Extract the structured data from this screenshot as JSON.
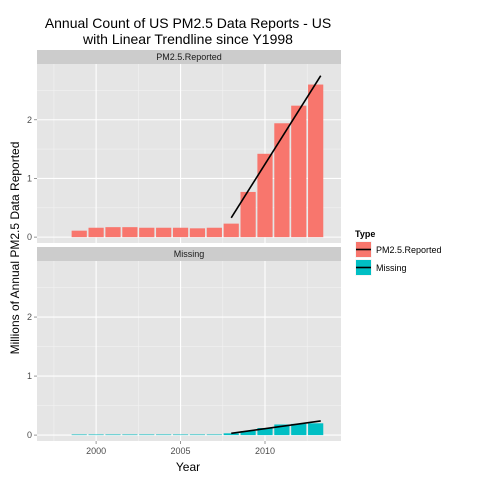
{
  "chart_data": {
    "type": "bar",
    "title_line1": "Annual Count of US PM2.5 Data Reports - US",
    "title_line2": "with Linear Trendline since Y1998",
    "xlabel": "Year",
    "ylabel": "Millions of Annual PM2.5 Data Reported",
    "xlim": [
      1996.5,
      2014.5
    ],
    "ylim": [
      -0.1,
      2.95
    ],
    "x_ticks": [
      2000,
      2005,
      2010
    ],
    "y_ticks": [
      0,
      1,
      2
    ],
    "legend": {
      "title": "Type",
      "placement": "right",
      "entries": [
        {
          "label": "PM2.5.Reported",
          "color": "#F8766D"
        },
        {
          "label": "Missing",
          "color": "#00BFC4"
        }
      ]
    },
    "trend_color": "#000000",
    "facets": [
      {
        "strip": "PM2.5.Reported",
        "color": "#F8766D",
        "x": [
          1999,
          2000,
          2001,
          2002,
          2003,
          2004,
          2005,
          2006,
          2007,
          2008,
          2009,
          2010,
          2011,
          2012,
          2013
        ],
        "values": [
          0.11,
          0.16,
          0.17,
          0.17,
          0.16,
          0.16,
          0.16,
          0.15,
          0.16,
          0.23,
          0.77,
          1.42,
          1.94,
          2.24,
          2.6
        ],
        "trend": {
          "x": [
            2008,
            2013.3
          ],
          "y": [
            0.33,
            2.75
          ]
        }
      },
      {
        "strip": "Missing",
        "color": "#00BFC4",
        "x": [
          1999,
          2000,
          2001,
          2002,
          2003,
          2004,
          2005,
          2006,
          2007,
          2008,
          2009,
          2010,
          2011,
          2012,
          2013
        ],
        "values": [
          0.01,
          0.01,
          0.01,
          0.01,
          0.01,
          0.01,
          0.01,
          0.01,
          0.01,
          0.03,
          0.07,
          0.12,
          0.18,
          0.19,
          0.2
        ],
        "trend": {
          "x": [
            2008,
            2013.3
          ],
          "y": [
            0.03,
            0.24
          ]
        }
      }
    ]
  }
}
